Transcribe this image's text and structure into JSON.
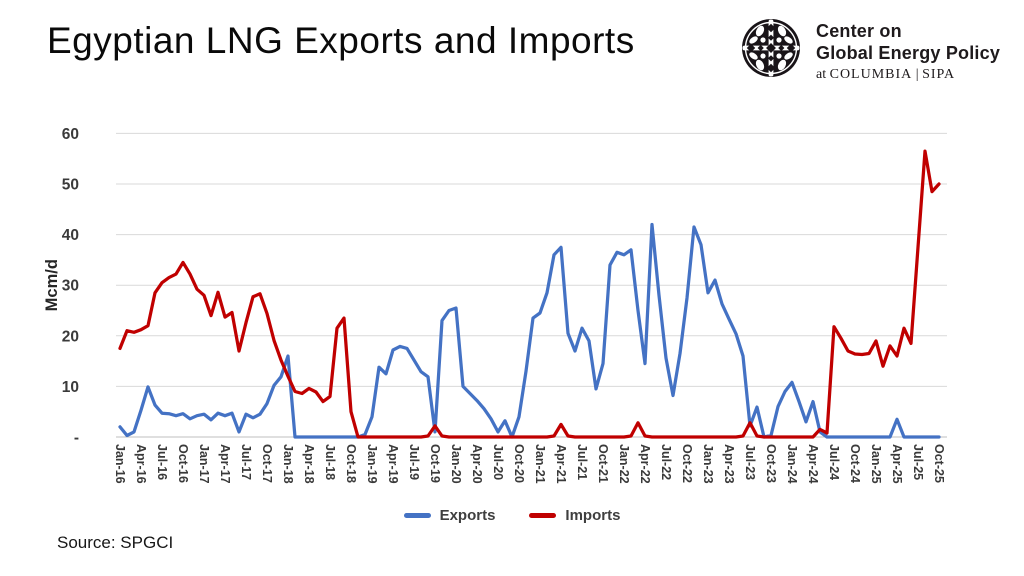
{
  "header": {
    "title": "Egyptian LNG Exports and Imports",
    "logo": {
      "line1": "Center on",
      "line2": "Global Energy Policy",
      "line3_prefix": "at",
      "line3_main": "COLUMBIA",
      "line3_sep": "|",
      "line3_suffix": "SIPA"
    }
  },
  "source": "Source: SPGCI",
  "colors": {
    "exports_blue": "#4472C4",
    "imports_red": "#C00000",
    "gridline": "#D9D9D9",
    "axis_line": "#BFBFBF",
    "axis_text": "#3A3A3A"
  },
  "chart_data": {
    "type": "line",
    "title": "Egyptian LNG Exports and Imports",
    "xlabel": "",
    "ylabel": "Mcm/d",
    "ylim": [
      0,
      60
    ],
    "grid": "horizontal",
    "legend_position": "bottom",
    "y_tick_labels": [
      "60",
      "50",
      "40",
      "30",
      "20",
      "10",
      "-"
    ],
    "x_frequency": "monthly",
    "x_start": "Jan-16",
    "x_end": "Oct-25",
    "x_tick_labels": [
      "Jan-16",
      "Apr-16",
      "Jul-16",
      "Oct-16",
      "Jan-17",
      "Apr-17",
      "Jul-17",
      "Oct-17",
      "Jan-18",
      "Apr-18",
      "Jul-18",
      "Oct-18",
      "Jan-19",
      "Apr-19",
      "Jul-19",
      "Oct-19",
      "Jan-20",
      "Apr-20",
      "Jul-20",
      "Oct-20",
      "Jan-21",
      "Apr-21",
      "Jul-21",
      "Oct-21",
      "Jan-22",
      "Apr-22",
      "Jul-22",
      "Oct-22",
      "Jan-23",
      "Apr-23",
      "Jul-23",
      "Oct-23",
      "Jan-24",
      "Apr-24",
      "Jul-24",
      "Oct-24",
      "Jan-25",
      "Apr-25",
      "Jul-25",
      "Oct-25"
    ],
    "series": [
      {
        "name": "Exports",
        "color": "#4472C4",
        "values": [
          2,
          0.3,
          1,
          5.3,
          9.9,
          6.3,
          4.7,
          4.6,
          4.2,
          4.6,
          3.6,
          4.2,
          4.5,
          3.4,
          4.7,
          4.2,
          4.7,
          1,
          4.5,
          3.8,
          4.5,
          6.6,
          10.2,
          11.9,
          16,
          0,
          0,
          0,
          0,
          0,
          0,
          0,
          0,
          0,
          0,
          0.5,
          4,
          13.8,
          12.5,
          17.2,
          17.9,
          17.5,
          15.2,
          12.9,
          11.9,
          1,
          23,
          25,
          25.5,
          10,
          8.6,
          7.2,
          5.6,
          3.6,
          1,
          3.2,
          0,
          4,
          13,
          23.5,
          24.5,
          28.5,
          36,
          37.5,
          20.5,
          17,
          21.5,
          19,
          9.5,
          14.5,
          34,
          36.5,
          36,
          37,
          25,
          14.5,
          42,
          28,
          15.6,
          8.2,
          16.5,
          27.5,
          41.5,
          38,
          28.5,
          31,
          26.3,
          23.3,
          20.4,
          16,
          2.2,
          5.9,
          0,
          0.3,
          6,
          9,
          10.8,
          7,
          3,
          7,
          1,
          0,
          0,
          0,
          0,
          0,
          0,
          0,
          0,
          0,
          0,
          3.5,
          0,
          0,
          0,
          0,
          0,
          0
        ]
      },
      {
        "name": "Imports",
        "color": "#C00000",
        "values": [
          17.5,
          21,
          20.7,
          21.2,
          22,
          28.5,
          30.5,
          31.5,
          32.2,
          34.5,
          32.2,
          29.2,
          28,
          24,
          28.6,
          23.7,
          24.6,
          17,
          22.6,
          27.7,
          28.3,
          24.4,
          19.1,
          15.2,
          12,
          9,
          8.6,
          9.6,
          8.9,
          7,
          8,
          21.5,
          23.5,
          5,
          0,
          0,
          0,
          0,
          0,
          0,
          0,
          0,
          0,
          0,
          0.2,
          2.2,
          0.2,
          0,
          0,
          0,
          0,
          0,
          0,
          0,
          0,
          0,
          0,
          0,
          0,
          0,
          0,
          0,
          0.2,
          2.5,
          0.2,
          0,
          0,
          0,
          0,
          0,
          0,
          0,
          0,
          0.2,
          2.8,
          0.2,
          0,
          0,
          0,
          0,
          0,
          0,
          0,
          0,
          0,
          0,
          0,
          0,
          0,
          0.2,
          2.8,
          0.2,
          0,
          0,
          0,
          0,
          0,
          0,
          0,
          0,
          1.5,
          0.8,
          21.8,
          19.5,
          17,
          16.4,
          16.3,
          16.5,
          19,
          14,
          18,
          16,
          21.5,
          18.5,
          37.5,
          56.5,
          48.5,
          50
        ]
      }
    ]
  }
}
